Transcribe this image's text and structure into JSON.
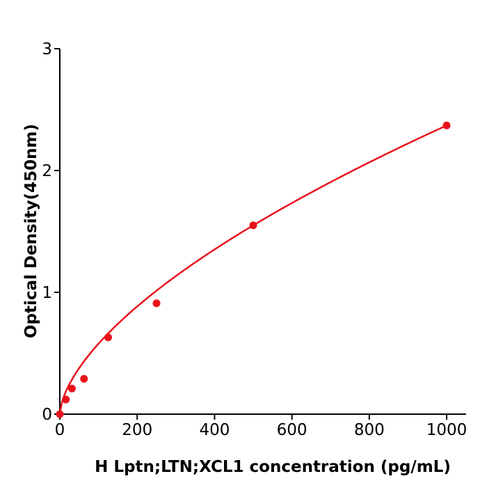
{
  "chart_data": {
    "type": "scatter",
    "title": "",
    "xlabel": "H  Lptn;LTN;XCL1 concentration (pg/mL)",
    "ylabel": "Optical Density(450nm)",
    "xlim": [
      0,
      1050
    ],
    "ylim": [
      0,
      3
    ],
    "xticks": [
      "0",
      "200",
      "400",
      "600",
      "800",
      "1000"
    ],
    "yticks": [
      "0",
      "1",
      "2",
      "3"
    ],
    "grid": false,
    "color": "#e8141c",
    "series": [
      {
        "x": [
          0,
          15.6,
          31.25,
          62.5,
          125,
          250,
          500,
          1000
        ],
        "y": [
          0.0,
          0.12,
          0.21,
          0.29,
          0.63,
          0.91,
          1.55,
          2.37
        ]
      }
    ],
    "fit_curve": true
  }
}
